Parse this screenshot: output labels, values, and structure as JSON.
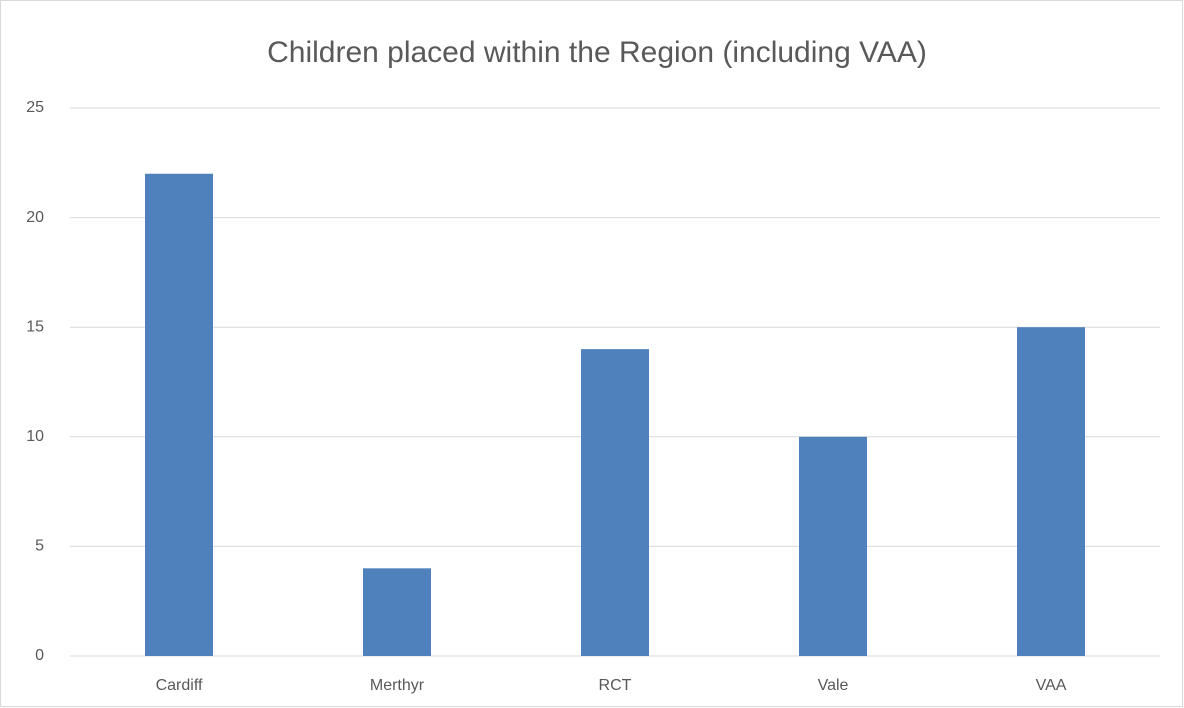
{
  "chart_data": {
    "type": "bar",
    "title": "Children placed within the Region (including VAA)",
    "categories": [
      "Cardiff",
      "Merthyr",
      "RCT",
      "Vale",
      "VAA"
    ],
    "values": [
      22,
      4,
      14,
      10,
      15
    ],
    "color": "#4f81bd",
    "ylim": [
      0,
      25
    ],
    "yticks": [
      0,
      5,
      10,
      15,
      20,
      25
    ],
    "grid": true
  }
}
